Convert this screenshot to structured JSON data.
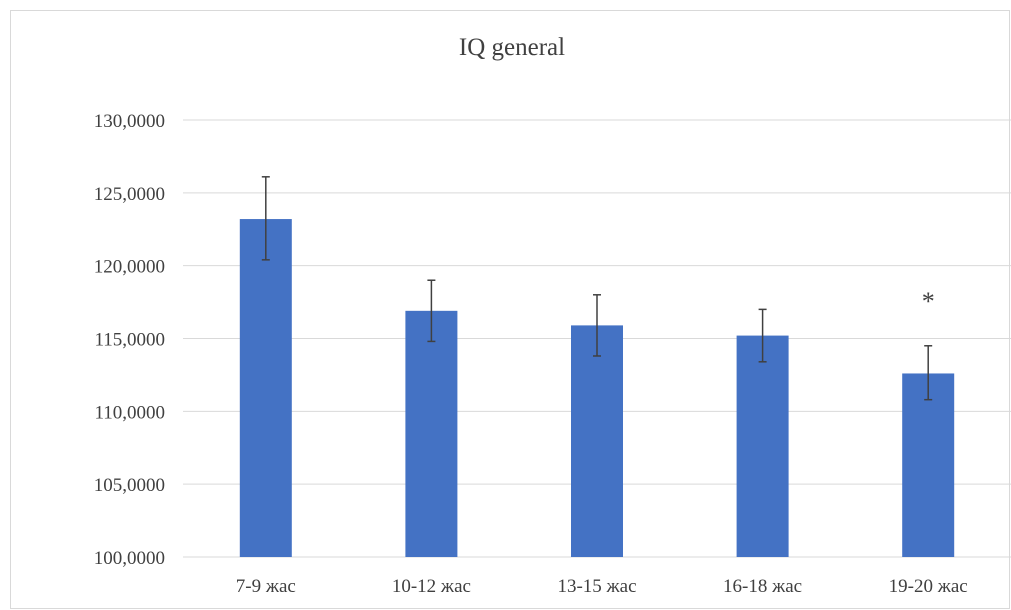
{
  "chart_data": {
    "type": "bar",
    "title": "IQ general",
    "xlabel": "",
    "ylabel": "",
    "categories": [
      "7-9 жас",
      "10-12 жас",
      "13-15 жас",
      "16-18 жас",
      "19-20 жас"
    ],
    "values": [
      123.2,
      116.9,
      115.9,
      115.2,
      112.6
    ],
    "error_plus": [
      2.9,
      2.1,
      2.1,
      1.8,
      1.9
    ],
    "error_minus": [
      2.8,
      2.1,
      2.1,
      1.8,
      1.8
    ],
    "ylim": [
      100,
      130
    ],
    "yticks": [
      100,
      105,
      110,
      115,
      120,
      125,
      130
    ],
    "ytick_labels": [
      "100,0000",
      "105,0000",
      "110,0000",
      "115,0000",
      "120,0000",
      "125,0000",
      "130,0000"
    ],
    "grid": true,
    "legend": "none",
    "bar_color": "#4472c4",
    "annotations": [
      {
        "category": "19-20 жас",
        "text": "*"
      }
    ]
  }
}
